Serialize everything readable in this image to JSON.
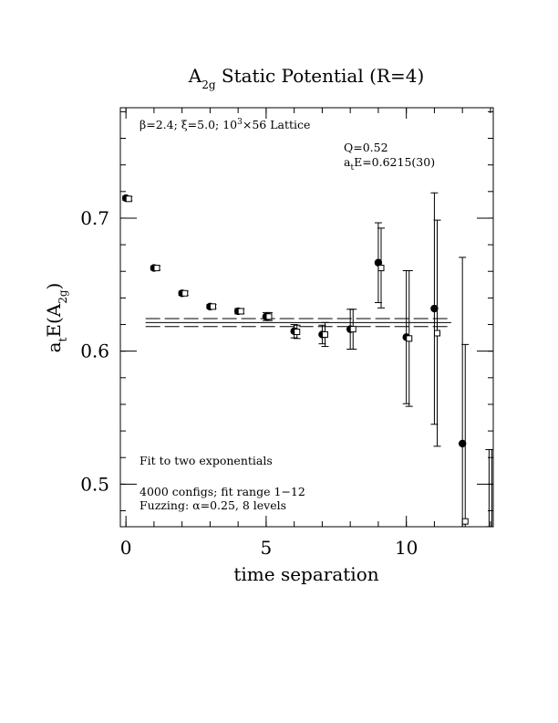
{
  "chart_data": {
    "type": "scatter",
    "title": {
      "main": "A",
      "main_sub": "2g",
      "rest": " Static Potential (R=4)"
    },
    "xlabel": "time separation",
    "ylabel": {
      "prefix": "a",
      "prefix_sub": "t",
      "middle": "E(A",
      "inner_sub": "2g",
      "suffix": ")"
    },
    "xlim": [
      -0.2,
      13.1
    ],
    "ylim": [
      0.468,
      0.783
    ],
    "x_ticks": [
      0,
      5,
      10
    ],
    "x_tick_labels": [
      "0",
      "5",
      "10"
    ],
    "y_ticks": [
      0.5,
      0.6,
      0.7
    ],
    "y_tick_labels": [
      "0.5",
      "0.6",
      "0.7"
    ],
    "x_minor_step": 1,
    "y_minor_step": 0.02,
    "grid": false,
    "annotations": {
      "lattice": {
        "beta": "β",
        "a": "=2.4; ",
        "xi": "ξ",
        "b": "=5.0; 10",
        "sup": "3",
        "c": "×56 Lattice"
      },
      "q": "Q=0.52",
      "fit_energy": {
        "a": "a",
        "sub": "t",
        "rest": "E=0.6215(30)"
      },
      "fit_desc": "Fit to two exponentials",
      "configs": "4000 configs; fit range 1−12",
      "fuzzing": {
        "a": "Fuzzing: ",
        "alpha": "α",
        "rest": "=0.25, 8 levels"
      }
    },
    "fit": {
      "value": 0.6215,
      "error": 0.003,
      "x_range": [
        0.7,
        11.6
      ]
    },
    "series": [
      {
        "marker": "filled-circle",
        "points": [
          {
            "x": 0,
            "y": 0.715,
            "err": 0.0015
          },
          {
            "x": 1,
            "y": 0.6625,
            "err": 0.0015
          },
          {
            "x": 2,
            "y": 0.6435,
            "err": 0.0015
          },
          {
            "x": 3,
            "y": 0.6335,
            "err": 0.0015
          },
          {
            "x": 4,
            "y": 0.63,
            "err": 0.002
          },
          {
            "x": 5,
            "y": 0.626,
            "err": 0.003
          },
          {
            "x": 6,
            "y": 0.615,
            "err": 0.005
          },
          {
            "x": 7,
            "y": 0.6125,
            "err": 0.007
          },
          {
            "x": 8,
            "y": 0.6165,
            "err": 0.015
          },
          {
            "x": 9,
            "y": 0.6665,
            "err": 0.03
          },
          {
            "x": 10,
            "y": 0.6105,
            "err": 0.05
          },
          {
            "x": 11,
            "y": 0.632,
            "err": 0.087
          },
          {
            "x": 12,
            "y": 0.5305,
            "err": 0.14
          }
        ]
      },
      {
        "marker": "open-square",
        "points": [
          {
            "x": 0.1,
            "y": 0.7145,
            "err": 0.0015
          },
          {
            "x": 1.1,
            "y": 0.6625,
            "err": 0.0015
          },
          {
            "x": 2.1,
            "y": 0.6435,
            "err": 0.0015
          },
          {
            "x": 3.1,
            "y": 0.6335,
            "err": 0.0015
          },
          {
            "x": 4.1,
            "y": 0.63,
            "err": 0.002
          },
          {
            "x": 5.1,
            "y": 0.626,
            "err": 0.003
          },
          {
            "x": 6.1,
            "y": 0.6145,
            "err": 0.005
          },
          {
            "x": 7.1,
            "y": 0.6125,
            "err": 0.009
          },
          {
            "x": 8.1,
            "y": 0.6165,
            "err": 0.015
          },
          {
            "x": 9.1,
            "y": 0.6625,
            "err": 0.03
          },
          {
            "x": 10.1,
            "y": 0.6095,
            "err": 0.051
          },
          {
            "x": 11.1,
            "y": 0.6135,
            "err": 0.085
          },
          {
            "x": 12.1,
            "y": 0.472,
            "err": 0.133
          },
          {
            "x": 12.95,
            "y": 0.466,
            "err": 0.06
          },
          {
            "x": 13.05,
            "y": 0.466,
            "err": 0.06
          }
        ]
      }
    ]
  }
}
